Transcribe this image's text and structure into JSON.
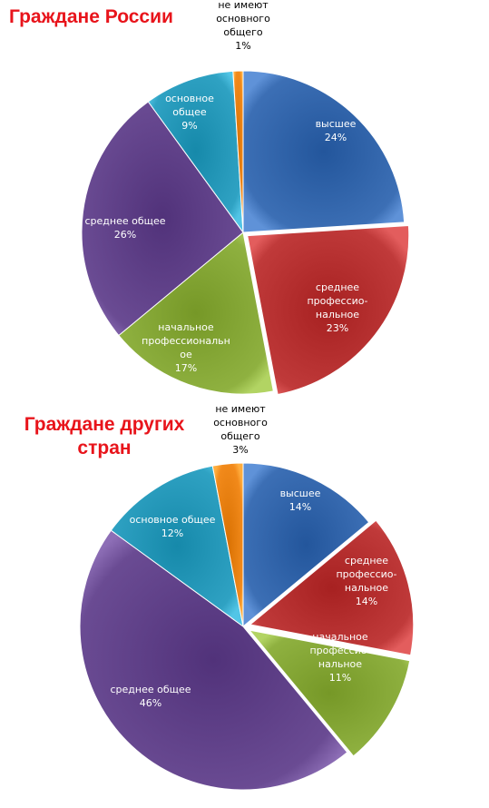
{
  "chart_data": [
    {
      "type": "pie",
      "title": "Граждане России",
      "colors": [
        "#3c6fb5",
        "#c03a3a",
        "#8fb140",
        "#6a4b93",
        "#2fa2c3",
        "#f28a1b"
      ],
      "slices": [
        {
          "label": [
            "высшее"
          ],
          "value_label": "24%",
          "value": 24
        },
        {
          "label": [
            "среднее",
            "профессио-",
            "нальное"
          ],
          "value_label": "23%",
          "value": 23
        },
        {
          "label": [
            "начальное",
            "профессиональн",
            "ое"
          ],
          "value_label": "17%",
          "value": 17
        },
        {
          "label": [
            "среднее общее"
          ],
          "value_label": "26%",
          "value": 26
        },
        {
          "label": [
            "основное",
            "общее"
          ],
          "value_label": "9%",
          "value": 9
        },
        {
          "label": [
            "не имеют",
            "основного",
            "общего"
          ],
          "value_label": "1%",
          "value": 1
        }
      ]
    },
    {
      "type": "pie",
      "title": "Граждане других стран",
      "colors": [
        "#3c6fb5",
        "#c03a3a",
        "#8fb140",
        "#6a4b93",
        "#2fa2c3",
        "#f28a1b"
      ],
      "slices": [
        {
          "label": [
            "высшее"
          ],
          "value_label": "14%",
          "value": 14
        },
        {
          "label": [
            "среднее",
            "профессио-",
            "нальное"
          ],
          "value_label": "14%",
          "value": 14
        },
        {
          "label": [
            "начальное",
            "профессио-",
            "нальное"
          ],
          "value_label": "11%",
          "value": 11
        },
        {
          "label": [
            "среднее общее"
          ],
          "value_label": "46%",
          "value": 46
        },
        {
          "label": [
            "основное общее"
          ],
          "value_label": "12%",
          "value": 12
        },
        {
          "label": [
            "не имеют",
            "основного",
            "общего"
          ],
          "value_label": "3%",
          "value": 3
        }
      ]
    }
  ]
}
